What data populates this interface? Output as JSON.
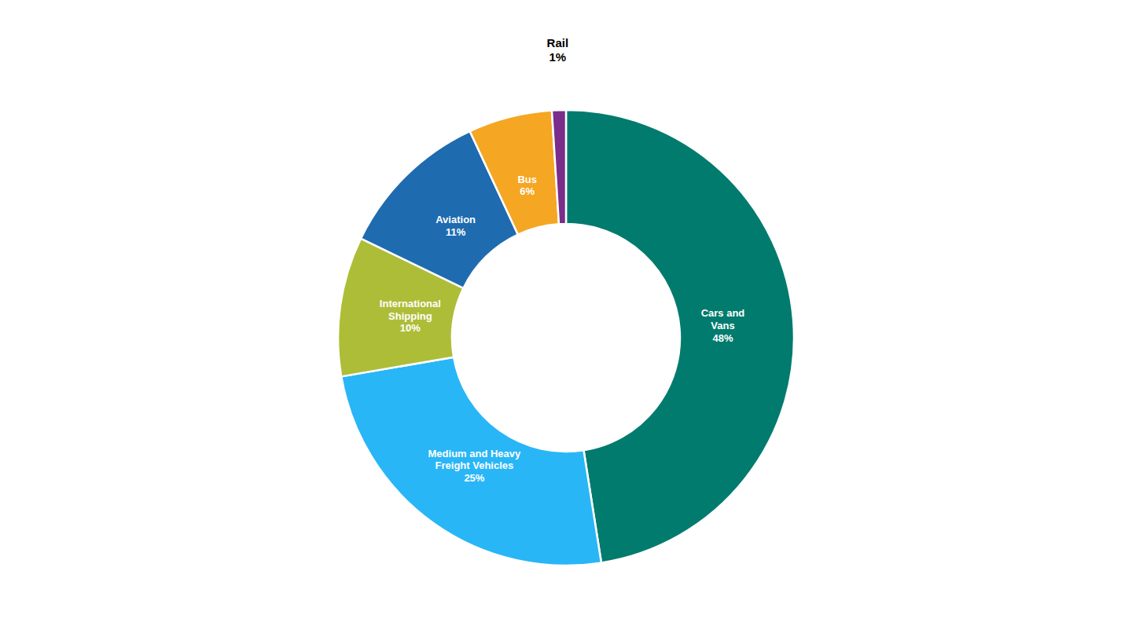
{
  "chart_data": {
    "type": "donut",
    "categories": [
      "Cars and\nVans",
      "Medium and Heavy\nFreight Vehicles",
      "International\nShipping",
      "Aviation",
      "Bus",
      "Rail"
    ],
    "values": [
      48,
      25,
      10,
      11,
      6,
      1
    ],
    "value_labels": [
      "48%",
      "25%",
      "10%",
      "11%",
      "6%",
      "1%"
    ],
    "colors": [
      "#007B6E",
      "#29B6F6",
      "#AEBD38",
      "#1E6BB0",
      "#F5A623",
      "#7B2D8B"
    ],
    "data_labels": true
  }
}
